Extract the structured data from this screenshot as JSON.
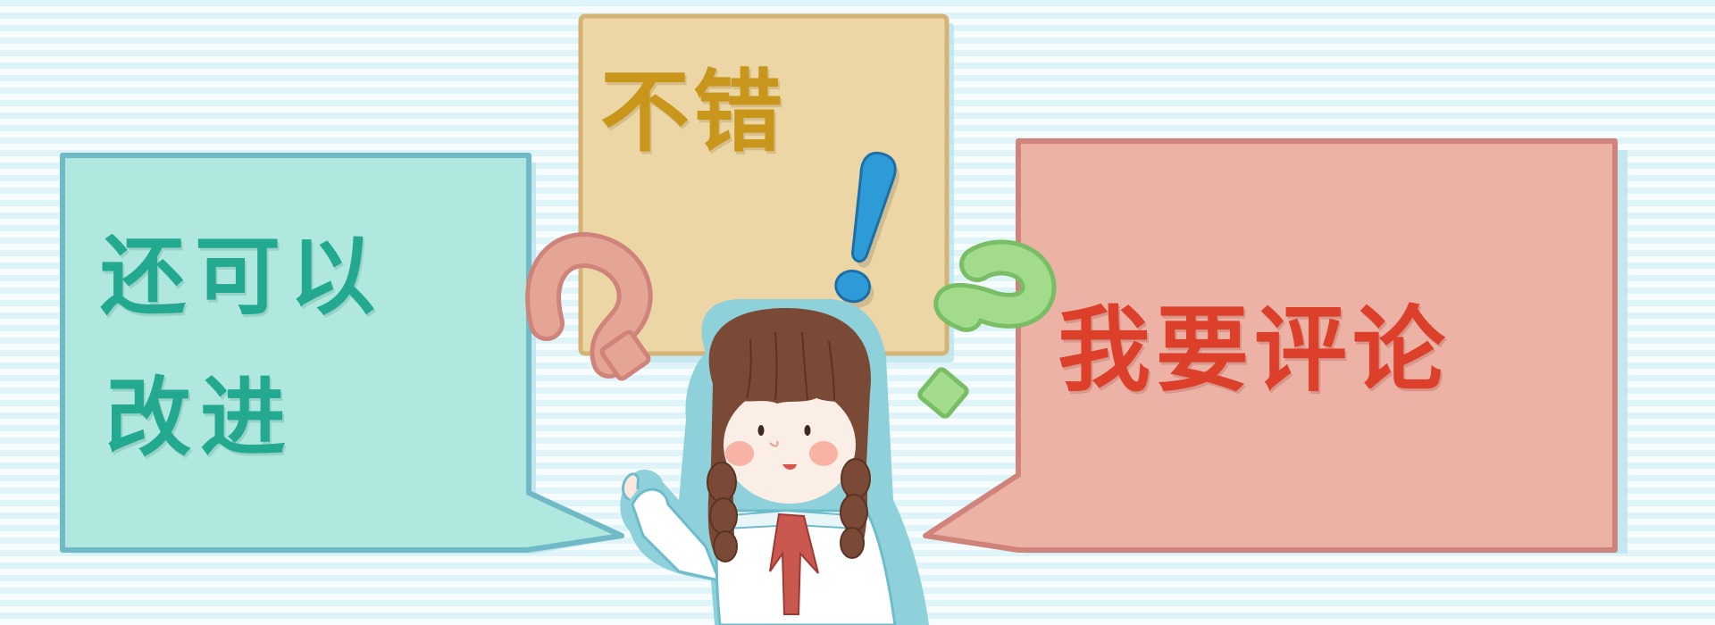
{
  "bubbles": {
    "good": {
      "text": "不错",
      "color": "#c8961b",
      "fill": "#ecd6a6"
    },
    "improve": {
      "line1": "还可以",
      "line2": "改进",
      "color": "#22a98f",
      "fill": "#b0e8df"
    },
    "comment": {
      "text": "我要评论",
      "color": "#dc3f2a",
      "fill": "#edb2a6"
    }
  },
  "marks": {
    "exclamation": {
      "color": "#2d9bd8"
    },
    "question_left": {
      "color": "#e5a595"
    },
    "question_right": {
      "color": "#a2db8c"
    }
  },
  "character": {
    "hair_color": "#7a4a36",
    "scarf_color": "#c9594f",
    "outline_color": "#8fd1db"
  },
  "background": {
    "stripe_light": "#f7fdfe",
    "stripe_dark": "#dff4f9"
  }
}
